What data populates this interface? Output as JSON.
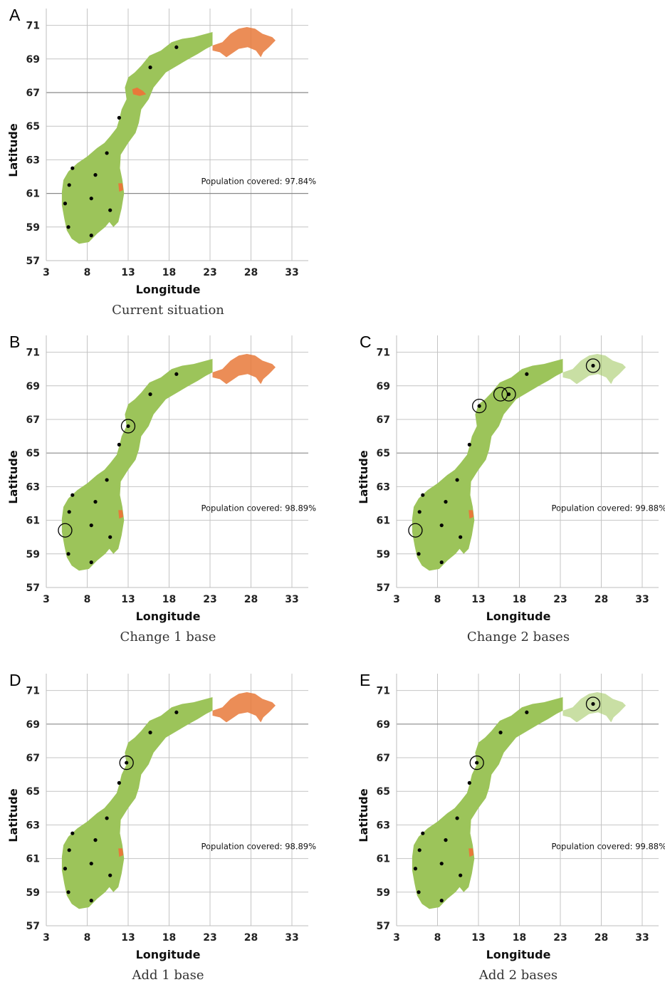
{
  "axes": {
    "x_title": "Longitude",
    "y_title": "Latitude",
    "x_ticks": [
      3,
      8,
      13,
      18,
      23,
      28,
      33
    ],
    "y_ticks": [
      57,
      59,
      61,
      63,
      65,
      67,
      69,
      71
    ],
    "xlim": [
      3,
      35
    ],
    "ylim": [
      57,
      72
    ]
  },
  "colors": {
    "covered": "#9cc45a",
    "uncovered": "#e8793a",
    "base": "#000000",
    "new_base_ring": "#000000"
  },
  "existing_bases": [
    [
      5.3,
      60.4
    ],
    [
      5.8,
      61.5
    ],
    [
      6.2,
      62.5
    ],
    [
      5.7,
      59.0
    ],
    [
      8.5,
      58.5
    ],
    [
      8.5,
      60.7
    ],
    [
      9.0,
      62.1
    ],
    [
      10.4,
      63.4
    ],
    [
      10.8,
      60.0
    ],
    [
      11.9,
      65.5
    ],
    [
      15.7,
      68.5
    ],
    [
      18.9,
      69.7
    ]
  ],
  "panels": [
    {
      "letter": "A",
      "caption": "Current situation",
      "annotation": "Population covered: 97.84%",
      "highlight_lat": [
        61,
        67
      ],
      "removed_bases": [],
      "added_bases": [],
      "north_uncovered": true,
      "central_uncovered": true
    },
    {
      "letter": "B",
      "caption": "Change 1 base",
      "annotation": "Population covered: 98.89%",
      "highlight_lat": [
        65
      ],
      "removed_bases": [
        [
          5.3,
          60.4
        ]
      ],
      "added_bases": [
        [
          13.0,
          66.6
        ]
      ],
      "north_uncovered": true,
      "central_uncovered": false
    },
    {
      "letter": "C",
      "caption": "Change 2 bases",
      "annotation": "Population covered: 99.88%",
      "highlight_lat": [
        65
      ],
      "removed_bases": [
        [
          5.3,
          60.4
        ],
        [
          15.7,
          68.5
        ]
      ],
      "added_bases": [
        [
          13.1,
          67.8
        ],
        [
          16.7,
          68.5
        ],
        [
          27.0,
          70.2
        ]
      ],
      "north_uncovered": false,
      "central_uncovered": false
    },
    {
      "letter": "D",
      "caption": "Add 1 base",
      "annotation": "Population covered: 98.89%",
      "highlight_lat": [
        69
      ],
      "removed_bases": [],
      "added_bases": [
        [
          12.8,
          66.7
        ]
      ],
      "north_uncovered": true,
      "central_uncovered": false
    },
    {
      "letter": "E",
      "caption": "Add 2 bases",
      "annotation": "Population covered: 99.88%",
      "highlight_lat": [
        69
      ],
      "removed_bases": [],
      "added_bases": [
        [
          12.8,
          66.7
        ],
        [
          27.0,
          70.2
        ]
      ],
      "north_uncovered": false,
      "central_uncovered": false
    }
  ]
}
